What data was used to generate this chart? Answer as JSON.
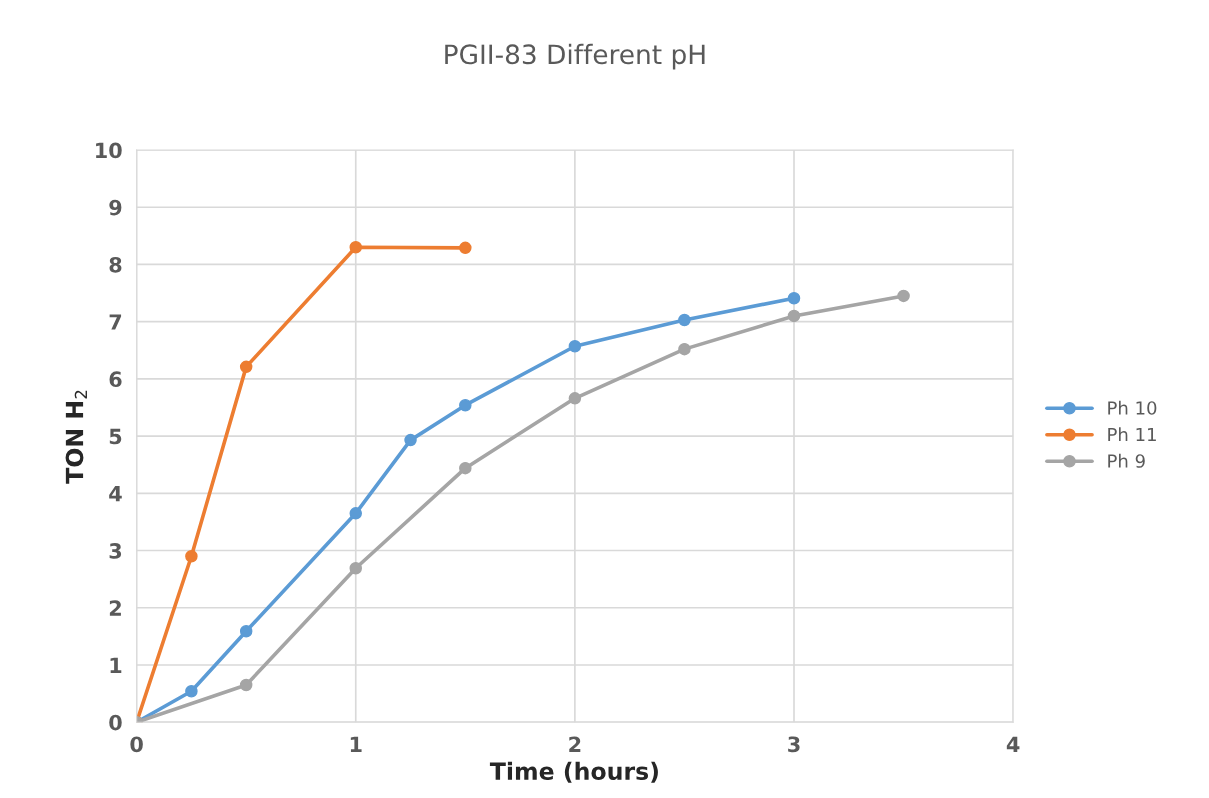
{
  "chart_data": {
    "type": "line",
    "title": "PGII-83 Different pH",
    "xlabel": "Time (hours)",
    "ylabel": "TON H$_{2}$",
    "xlim": [
      0,
      4
    ],
    "xticks": [
      0,
      1,
      2,
      3,
      4
    ],
    "ylim": [
      0,
      10
    ],
    "yticks": [
      0,
      1,
      2,
      3,
      4,
      5,
      6,
      7,
      8,
      9,
      10
    ],
    "grid": true,
    "legend": "right",
    "marker": "circle",
    "line_style": "solid",
    "series": [
      {
        "name": "Ph 10",
        "color": "#5b9bd5",
        "x": [
          0,
          0.25,
          0.5,
          1,
          1.25,
          1.5,
          2,
          2.5,
          3
        ],
        "values": [
          0,
          0.54,
          1.59,
          3.65,
          4.93,
          5.54,
          6.57,
          7.03,
          7.41
        ]
      },
      {
        "name": "Ph 11",
        "color": "#ed7d31",
        "x": [
          0,
          0.25,
          0.5,
          1,
          1.5
        ],
        "values": [
          0,
          2.9,
          6.21,
          8.3,
          8.29
        ]
      },
      {
        "name": "Ph 9",
        "color": "#a5a5a5",
        "x": [
          0,
          0.5,
          1,
          1.5,
          2,
          2.5,
          3,
          3.5
        ],
        "values": [
          0,
          0.65,
          2.69,
          4.44,
          5.66,
          6.52,
          7.1,
          7.45
        ]
      }
    ]
  }
}
